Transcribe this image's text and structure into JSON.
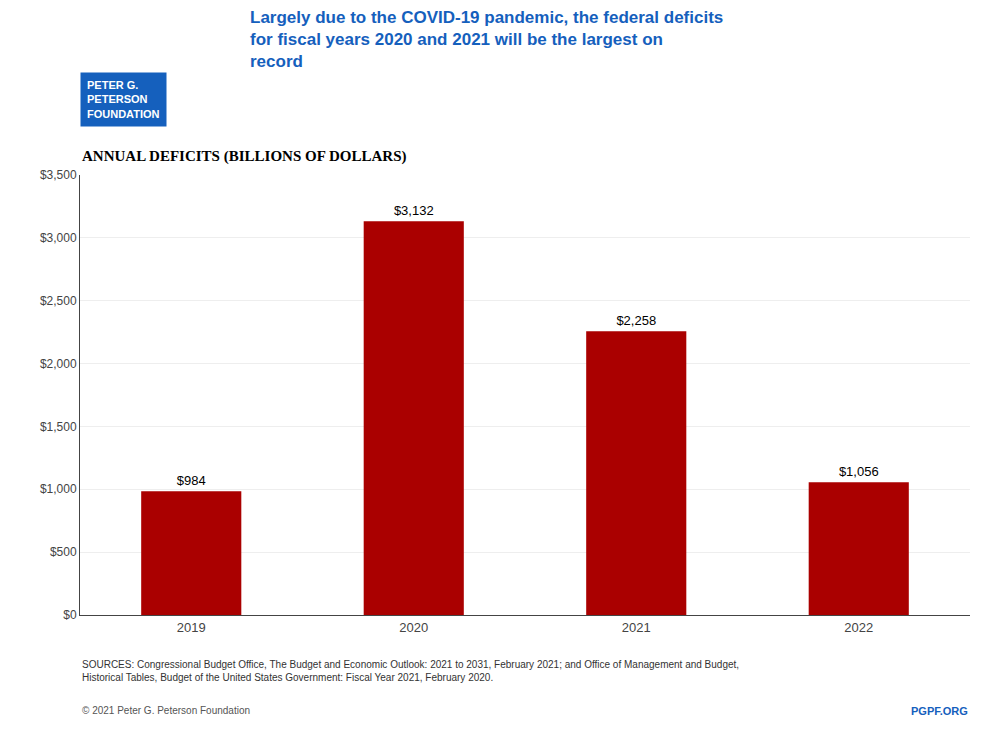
{
  "chart_data": {
    "type": "bar",
    "title": "Largely due to the COVID-19 pandemic, the federal deficits\nfor fiscal years 2020 and 2021 will be the largest on\nrecord",
    "subtitle": "ANNUAL DEFICITS (BILLIONS OF DOLLARS)",
    "categories": [
      "2019",
      "2020",
      "2021",
      "2022"
    ],
    "values": [
      984,
      3132,
      2258,
      1056
    ],
    "value_labels": [
      "$984",
      "$3,132",
      "$2,258",
      "$1,056"
    ],
    "data_labels": true,
    "color": "#AA0000",
    "ylim": [
      0,
      3500
    ],
    "yticks": [
      {
        "value": 0,
        "label": "$0"
      },
      {
        "value": 500,
        "label": "$500"
      },
      {
        "value": 1000,
        "label": "$1,000"
      },
      {
        "value": 1500,
        "label": "$1,500"
      },
      {
        "value": 2000,
        "label": "$2,000"
      },
      {
        "value": 2500,
        "label": "$2,500"
      },
      {
        "value": 3000,
        "label": "$3,000"
      },
      {
        "value": 3500,
        "label": "$3,500"
      }
    ],
    "grid": true,
    "annotations": [
      "PETER G.",
      "PETERSON",
      "FOUNDATION",
      "SOURCES: Congressional Budget Office, The Budget and Economic Outlook: 2021 to 2031, February 2021; and Office of Management and Budget,\nHistorical Tables, Budget of the United States Government: Fiscal Year 2021, February 2020.",
      "© 2021 Peter G. Peterson Foundation",
      "PGPF.ORG"
    ]
  }
}
